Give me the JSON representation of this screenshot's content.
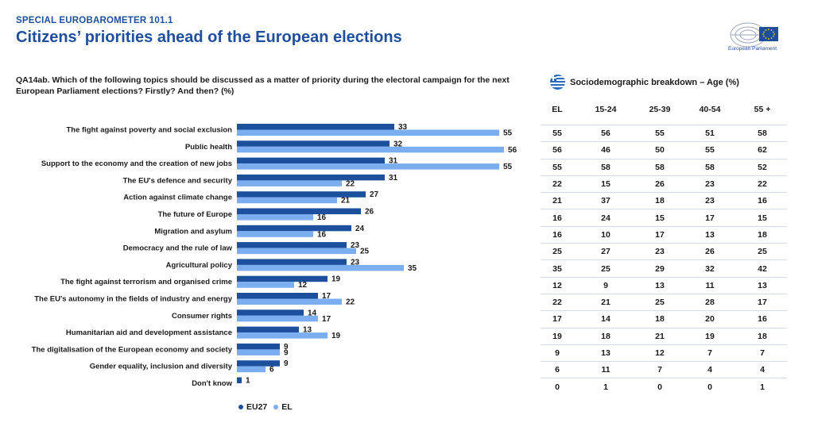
{
  "header": {
    "survey": "SPECIAL EUROBAROMETER 101.1",
    "title": "Citizens’ priorities ahead of the European elections",
    "logo_text": "European Parliament"
  },
  "question": "QA14ab. Which of the following topics should be discussed as a matter of priority during the electoral campaign for the next European Parliament elections? Firstly? And then? (%)",
  "colors": {
    "eu27": "#1c4f9c",
    "el": "#7aaef0",
    "title": "#1f4f9c"
  },
  "legend": {
    "eu27": "EU27",
    "el": "EL"
  },
  "chart_data": {
    "type": "bar",
    "orientation": "horizontal",
    "categories": [
      "The fight against poverty and social exclusion",
      "Public health",
      "Support to the economy and the creation of new jobs",
      "The EU's defence and security",
      "Action against climate change",
      "The future of Europe",
      "Migration and asylum",
      "Democracy and the rule of law",
      "Agricultural policy",
      "The fight against terrorism and organised crime",
      "The EU's autonomy in the fields of industry and energy",
      "Consumer rights",
      "Humanitarian aid and development assistance",
      "The digitalisation of the European economy and society",
      "Gender equality, inclusion and diversity",
      "Don't know"
    ],
    "series": [
      {
        "name": "EU27",
        "values": [
          33,
          32,
          31,
          31,
          27,
          26,
          24,
          23,
          23,
          19,
          17,
          14,
          13,
          9,
          9,
          1
        ]
      },
      {
        "name": "EL",
        "values": [
          55,
          56,
          55,
          22,
          21,
          16,
          16,
          25,
          35,
          12,
          22,
          17,
          19,
          9,
          6,
          null
        ]
      }
    ],
    "legend_position": "bottom"
  },
  "breakdown": {
    "title": "Sociodemographic breakdown – Age (%)",
    "columns": [
      "EL",
      "15-24",
      "25-39",
      "40-54",
      "55 +"
    ],
    "rows": [
      [
        "55",
        "56",
        "55",
        "51",
        "58"
      ],
      [
        "56",
        "46",
        "50",
        "55",
        "62"
      ],
      [
        "55",
        "58",
        "58",
        "58",
        "52"
      ],
      [
        "22",
        "15",
        "26",
        "23",
        "22"
      ],
      [
        "21",
        "37",
        "18",
        "23",
        "16"
      ],
      [
        "16",
        "24",
        "15",
        "17",
        "15"
      ],
      [
        "16",
        "10",
        "17",
        "13",
        "18"
      ],
      [
        "25",
        "27",
        "23",
        "26",
        "25"
      ],
      [
        "35",
        "25",
        "29",
        "32",
        "42"
      ],
      [
        "12",
        "9",
        "13",
        "11",
        "13"
      ],
      [
        "22",
        "21",
        "25",
        "28",
        "17"
      ],
      [
        "17",
        "14",
        "18",
        "20",
        "16"
      ],
      [
        "19",
        "18",
        "21",
        "19",
        "18"
      ],
      [
        "9",
        "13",
        "12",
        "7",
        "7"
      ],
      [
        "6",
        "11",
        "7",
        "4",
        "4"
      ],
      [
        "0",
        "1",
        "0",
        "0",
        "1"
      ]
    ]
  }
}
